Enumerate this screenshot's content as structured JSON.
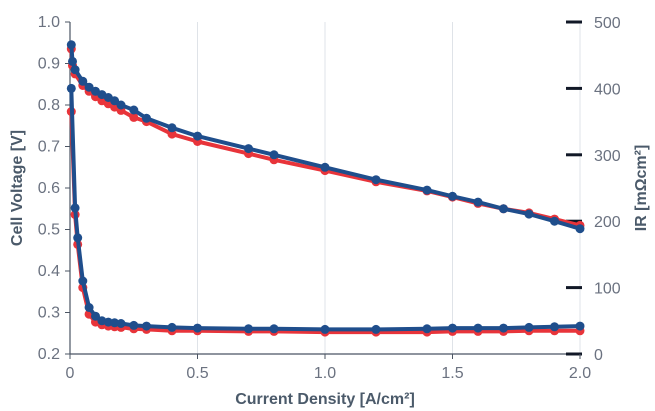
{
  "chart_data": {
    "type": "line",
    "xlabel": "Current Density [A/cm²]",
    "ylabel": "Cell Voltage [V]",
    "y2label": "IR [mΩcm²]",
    "xlim": [
      0,
      2.0
    ],
    "ylim": [
      0.2,
      1.0
    ],
    "y2lim": [
      0,
      500
    ],
    "x_ticks": [
      "0",
      "0.5",
      "1.0",
      "1.5",
      "2.0"
    ],
    "y_ticks": [
      "0.2",
      "0.3",
      "0.4",
      "0.5",
      "0.6",
      "0.7",
      "0.8",
      "0.9",
      "1.0"
    ],
    "y2_ticks": [
      "0",
      "100",
      "200",
      "300",
      "400",
      "500"
    ],
    "grid": "vertical",
    "colors": {
      "blue": "#1f4e8c",
      "red": "#e8343a"
    },
    "series": [
      {
        "color": "blue",
        "axis": "left",
        "points": [
          [
            0.005,
            0.945
          ],
          [
            0.01,
            0.905
          ],
          [
            0.02,
            0.885
          ],
          [
            0.05,
            0.857
          ],
          [
            0.075,
            0.843
          ],
          [
            0.1,
            0.833
          ],
          [
            0.125,
            0.825
          ],
          [
            0.15,
            0.818
          ],
          [
            0.175,
            0.81
          ],
          [
            0.2,
            0.8
          ],
          [
            0.25,
            0.788
          ],
          [
            0.3,
            0.768
          ],
          [
            0.4,
            0.745
          ],
          [
            0.5,
            0.725
          ],
          [
            0.7,
            0.695
          ],
          [
            0.8,
            0.68
          ],
          [
            1.0,
            0.65
          ],
          [
            1.2,
            0.62
          ],
          [
            1.4,
            0.595
          ],
          [
            1.5,
            0.58
          ],
          [
            1.6,
            0.566
          ],
          [
            1.7,
            0.55
          ],
          [
            1.8,
            0.537
          ],
          [
            1.9,
            0.52
          ],
          [
            2.0,
            0.502
          ]
        ]
      },
      {
        "color": "red",
        "axis": "left",
        "points": [
          [
            0.005,
            0.935
          ],
          [
            0.01,
            0.895
          ],
          [
            0.02,
            0.875
          ],
          [
            0.05,
            0.847
          ],
          [
            0.075,
            0.833
          ],
          [
            0.1,
            0.82
          ],
          [
            0.125,
            0.81
          ],
          [
            0.15,
            0.803
          ],
          [
            0.175,
            0.795
          ],
          [
            0.2,
            0.787
          ],
          [
            0.25,
            0.77
          ],
          [
            0.3,
            0.76
          ],
          [
            0.4,
            0.73
          ],
          [
            0.5,
            0.712
          ],
          [
            0.7,
            0.683
          ],
          [
            0.8,
            0.668
          ],
          [
            1.0,
            0.642
          ],
          [
            1.2,
            0.615
          ],
          [
            1.4,
            0.593
          ],
          [
            1.5,
            0.578
          ],
          [
            1.6,
            0.563
          ],
          [
            1.7,
            0.55
          ],
          [
            1.8,
            0.54
          ],
          [
            1.9,
            0.525
          ],
          [
            2.0,
            0.51
          ]
        ]
      },
      {
        "color": "blue",
        "axis": "right",
        "points": [
          [
            0.005,
            400
          ],
          [
            0.02,
            220
          ],
          [
            0.03,
            175
          ],
          [
            0.05,
            110
          ],
          [
            0.075,
            70
          ],
          [
            0.1,
            57
          ],
          [
            0.125,
            50
          ],
          [
            0.15,
            48
          ],
          [
            0.175,
            47
          ],
          [
            0.2,
            46
          ],
          [
            0.25,
            43
          ],
          [
            0.3,
            42
          ],
          [
            0.4,
            40
          ],
          [
            0.5,
            39
          ],
          [
            0.7,
            38
          ],
          [
            0.8,
            38
          ],
          [
            1.0,
            37
          ],
          [
            1.2,
            37
          ],
          [
            1.4,
            38
          ],
          [
            1.5,
            39
          ],
          [
            1.6,
            39
          ],
          [
            1.7,
            39
          ],
          [
            1.8,
            40
          ],
          [
            1.9,
            41
          ],
          [
            2.0,
            42
          ]
        ]
      },
      {
        "color": "red",
        "axis": "right",
        "points": [
          [
            0.005,
            365
          ],
          [
            0.02,
            210
          ],
          [
            0.03,
            165
          ],
          [
            0.05,
            100
          ],
          [
            0.075,
            60
          ],
          [
            0.1,
            48
          ],
          [
            0.125,
            44
          ],
          [
            0.15,
            42
          ],
          [
            0.175,
            41
          ],
          [
            0.2,
            40
          ],
          [
            0.25,
            38
          ],
          [
            0.3,
            37
          ],
          [
            0.4,
            35
          ],
          [
            0.5,
            35
          ],
          [
            0.7,
            34
          ],
          [
            0.8,
            34
          ],
          [
            1.0,
            33
          ],
          [
            1.2,
            33
          ],
          [
            1.4,
            33
          ],
          [
            1.5,
            34
          ],
          [
            1.6,
            34
          ],
          [
            1.7,
            34
          ],
          [
            1.8,
            35
          ],
          [
            1.9,
            35
          ],
          [
            2.0,
            35
          ]
        ]
      }
    ]
  }
}
